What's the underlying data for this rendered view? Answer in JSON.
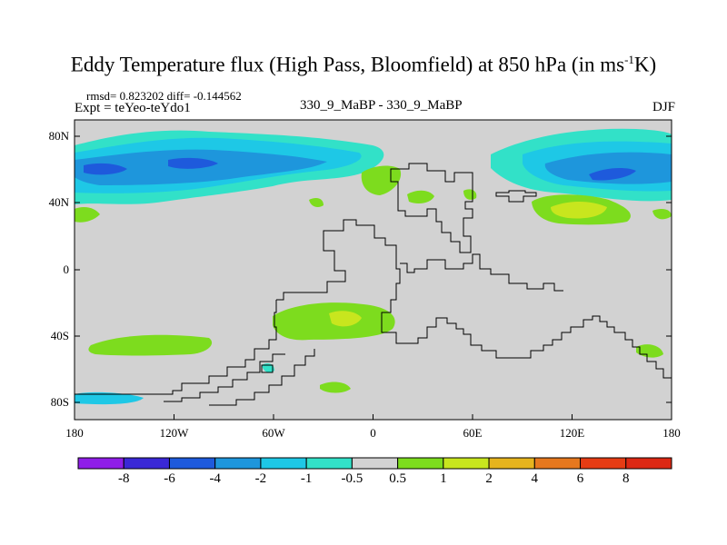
{
  "title": {
    "main": "Eddy Temperature flux (High Pass, Bloomfield) at 850 hPa (in ms",
    "sup": "-1",
    "end": "K)"
  },
  "stats": "rmsd= 0.823202 diff= -0.144562",
  "expt": "Expt = teYeo-teYdo1",
  "center_label": "330_9_MaBP - 330_9_MaBP",
  "season": "DJF",
  "y_ticks": [
    "80N",
    "40N",
    "0",
    "40S",
    "80S"
  ],
  "x_ticks": [
    "180",
    "120W",
    "60W",
    "0",
    "60E",
    "120E",
    "180"
  ],
  "colorbar": {
    "labels": [
      "-8",
      "-6",
      "-4",
      "-2",
      "-1",
      "-0.5",
      "0.5",
      "1",
      "2",
      "4",
      "6",
      "8"
    ],
    "colors": [
      "#8f1ee8",
      "#3a28d6",
      "#1e5adc",
      "#1e96dc",
      "#1ec8e6",
      "#32e1c8",
      "#d2d2d2",
      "#7ddc1e",
      "#c8e61e",
      "#e6b41e",
      "#e6781e",
      "#e63c14",
      "#dc2814"
    ]
  },
  "map": {
    "background_color": "#d2d2d2",
    "lon_range": [
      -180,
      180
    ],
    "lat_range": [
      -90,
      90
    ]
  }
}
